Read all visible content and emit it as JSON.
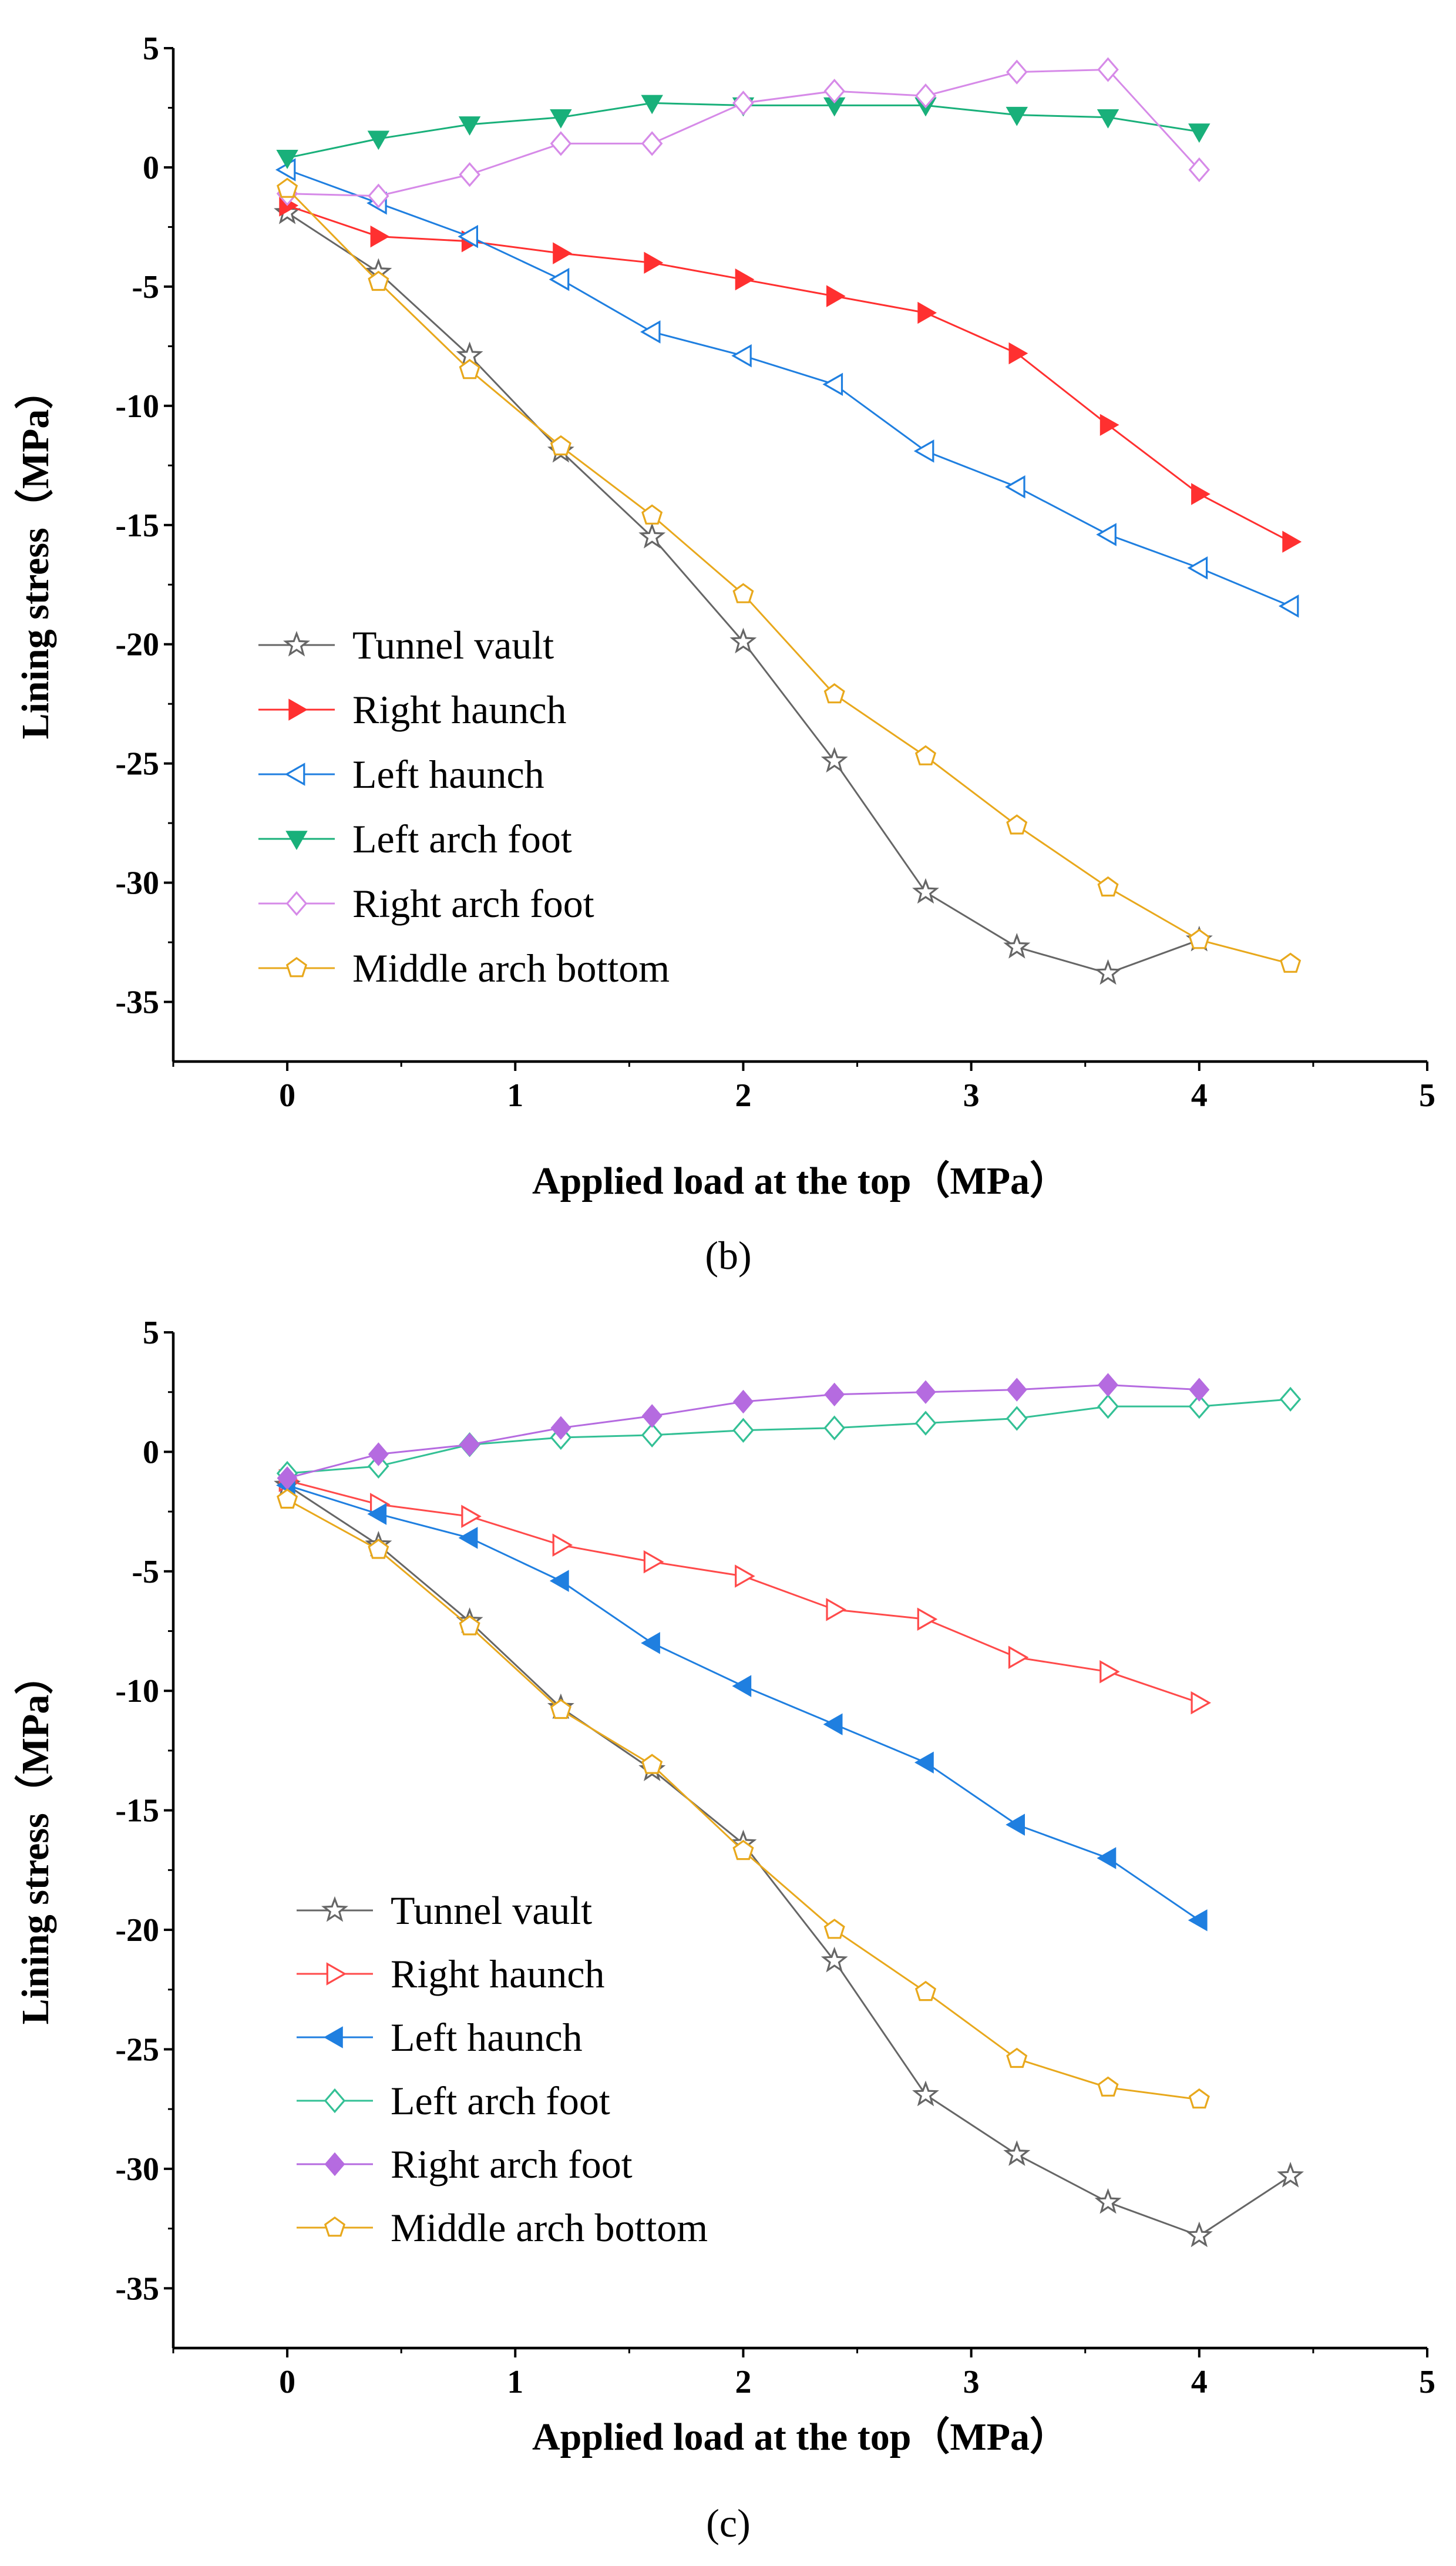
{
  "chart_data": [
    {
      "type": "line",
      "panel_label": "(b)",
      "xlabel": "Applied load at the top（MPa）",
      "ylabel": "Lining stress（MPa）",
      "xlim": [
        -0.5,
        5
      ],
      "ylim": [
        -37.5,
        5
      ],
      "xticks": [
        0,
        1,
        2,
        3,
        4,
        5
      ],
      "yticks": [
        5,
        0,
        -5,
        -10,
        -15,
        -20,
        -25,
        -30,
        -35
      ],
      "legend": "bottom-left",
      "series": [
        {
          "name": "Tunnel vault",
          "color": "#666666",
          "marker": "star",
          "filled": false,
          "x": [
            0,
            0.4,
            0.8,
            1.2,
            1.6,
            2.0,
            2.4,
            2.8,
            3.2,
            3.6,
            4.0
          ],
          "y": [
            -1.9,
            -4.4,
            -7.9,
            -11.9,
            -15.5,
            -19.9,
            -24.9,
            -30.4,
            -32.7,
            -33.8,
            -32.4
          ]
        },
        {
          "name": "Right haunch",
          "color": "#ff3030",
          "marker": "triangle-right",
          "filled": true,
          "x": [
            0,
            0.4,
            0.8,
            1.2,
            1.6,
            2.0,
            2.4,
            2.8,
            3.2,
            3.6,
            4.0,
            4.4
          ],
          "y": [
            -1.6,
            -2.9,
            -3.1,
            -3.6,
            -4.0,
            -4.7,
            -5.4,
            -6.1,
            -7.8,
            -10.8,
            -13.7,
            -15.7
          ]
        },
        {
          "name": "Left haunch",
          "color": "#1f7fe0",
          "marker": "triangle-left",
          "filled": false,
          "x": [
            0,
            0.4,
            0.8,
            1.2,
            1.6,
            2.0,
            2.4,
            2.8,
            3.2,
            3.6,
            4.0,
            4.4
          ],
          "y": [
            -0.1,
            -1.5,
            -2.9,
            -4.7,
            -6.9,
            -7.9,
            -9.1,
            -11.9,
            -13.4,
            -15.4,
            -16.8,
            -18.4
          ]
        },
        {
          "name": "Left arch foot",
          "color": "#19b07a",
          "marker": "triangle-down",
          "filled": true,
          "x": [
            0,
            0.4,
            0.8,
            1.2,
            1.6,
            2.0,
            2.4,
            2.8,
            3.2,
            3.6,
            4.0
          ],
          "y": [
            0.4,
            1.2,
            1.8,
            2.1,
            2.7,
            2.6,
            2.6,
            2.6,
            2.2,
            2.1,
            1.5
          ]
        },
        {
          "name": "Right arch foot",
          "color": "#d68ae8",
          "marker": "diamond",
          "filled": false,
          "x": [
            0,
            0.4,
            0.8,
            1.2,
            1.6,
            2.0,
            2.4,
            2.8,
            3.2,
            3.6,
            4.0
          ],
          "y": [
            -1.1,
            -1.2,
            -0.3,
            1.0,
            1.0,
            2.7,
            3.2,
            3.0,
            4.0,
            4.1,
            -0.1
          ]
        },
        {
          "name": "Middle arch bottom",
          "color": "#e8a81c",
          "marker": "pentagon",
          "filled": false,
          "x": [
            0,
            0.4,
            0.8,
            1.2,
            1.6,
            2.0,
            2.4,
            2.8,
            3.2,
            3.6,
            4.0,
            4.4
          ],
          "y": [
            -0.9,
            -4.8,
            -8.5,
            -11.7,
            -14.6,
            -17.9,
            -22.1,
            -24.7,
            -27.6,
            -30.2,
            -32.4,
            -33.4
          ]
        }
      ]
    },
    {
      "type": "line",
      "panel_label": "(c)",
      "xlabel": "Applied load at the top（MPa）",
      "ylabel": "Lining stress（MPa）",
      "xlim": [
        -0.5,
        5
      ],
      "ylim": [
        -37.5,
        5
      ],
      "xticks": [
        0,
        1,
        2,
        3,
        4,
        5
      ],
      "yticks": [
        5,
        0,
        -5,
        -10,
        -15,
        -20,
        -25,
        -30,
        -35
      ],
      "legend": "bottom-left",
      "series": [
        {
          "name": "Tunnel vault",
          "color": "#666666",
          "marker": "star",
          "filled": false,
          "x": [
            0,
            0.4,
            0.8,
            1.2,
            1.6,
            2.0,
            2.4,
            2.8,
            3.2,
            3.6,
            4.0,
            4.4
          ],
          "y": [
            -1.4,
            -3.9,
            -7.1,
            -10.7,
            -13.3,
            -16.4,
            -21.3,
            -26.9,
            -29.4,
            -31.4,
            -32.8,
            -30.3
          ]
        },
        {
          "name": "Right haunch",
          "color": "#ff4a4a",
          "marker": "triangle-right",
          "filled": false,
          "x": [
            0,
            0.4,
            0.8,
            1.2,
            1.6,
            2.0,
            2.4,
            2.8,
            3.2,
            3.6,
            4.0
          ],
          "y": [
            -1.2,
            -2.2,
            -2.7,
            -3.9,
            -4.6,
            -5.2,
            -6.6,
            -7.0,
            -8.6,
            -9.2,
            -10.5
          ]
        },
        {
          "name": "Left haunch",
          "color": "#1f7fe0",
          "marker": "triangle-left",
          "filled": true,
          "x": [
            0,
            0.4,
            0.8,
            1.2,
            1.6,
            2.0,
            2.4,
            2.8,
            3.2,
            3.6,
            4.0
          ],
          "y": [
            -1.4,
            -2.6,
            -3.6,
            -5.4,
            -8.0,
            -9.8,
            -11.4,
            -13.0,
            -15.6,
            -17.0,
            -19.6
          ]
        },
        {
          "name": "Left arch foot",
          "color": "#33c095",
          "marker": "diamond",
          "filled": false,
          "x": [
            0,
            0.4,
            0.8,
            1.2,
            1.6,
            2.0,
            2.4,
            2.8,
            3.2,
            3.6,
            4.0,
            4.4
          ],
          "y": [
            -0.9,
            -0.6,
            0.3,
            0.6,
            0.7,
            0.9,
            1.0,
            1.2,
            1.4,
            1.9,
            1.9,
            2.2
          ]
        },
        {
          "name": "Right arch foot",
          "color": "#b56be0",
          "marker": "diamond",
          "filled": true,
          "x": [
            0,
            0.4,
            0.8,
            1.2,
            1.6,
            2.0,
            2.4,
            2.8,
            3.2,
            3.6,
            4.0
          ],
          "y": [
            -1.1,
            -0.1,
            0.3,
            1.0,
            1.5,
            2.1,
            2.4,
            2.5,
            2.6,
            2.8,
            2.6
          ]
        },
        {
          "name": "Middle arch bottom",
          "color": "#e8a81c",
          "marker": "pentagon",
          "filled": false,
          "x": [
            0,
            0.4,
            0.8,
            1.2,
            1.6,
            2.0,
            2.4,
            2.8,
            3.2,
            3.6,
            4.0
          ],
          "y": [
            -2.0,
            -4.1,
            -7.3,
            -10.8,
            -13.1,
            -16.7,
            -20.0,
            -22.6,
            -25.4,
            -26.6,
            -27.1
          ]
        }
      ]
    }
  ]
}
